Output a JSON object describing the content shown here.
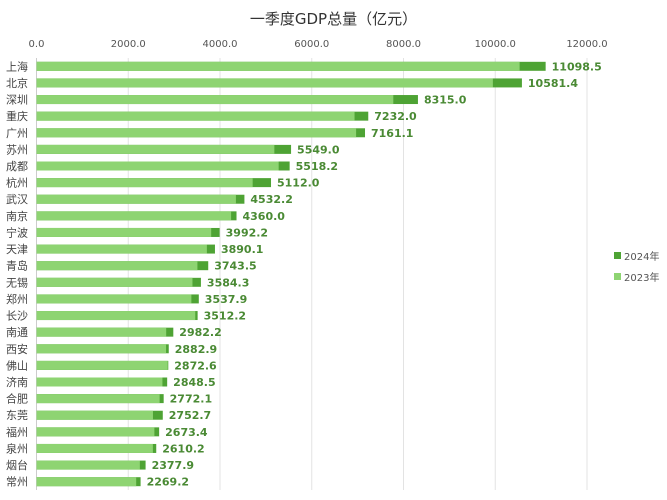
{
  "chart_data": {
    "type": "bar",
    "orientation": "horizontal",
    "title": "一季度GDP总量（亿元）",
    "xlim": [
      0,
      12000
    ],
    "x_ticks": [
      "0.0",
      "2000.0",
      "4000.0",
      "6000.0",
      "8000.0",
      "10000.0",
      "12000.0"
    ],
    "grid": true,
    "legend_position": "right",
    "categories": [
      "上海",
      "北京",
      "深圳",
      "重庆",
      "广州",
      "苏州",
      "成都",
      "杭州",
      "武汉",
      "南京",
      "宁波",
      "天津",
      "青岛",
      "无锡",
      "郑州",
      "长沙",
      "南通",
      "西安",
      "佛山",
      "济南",
      "合肥",
      "东莞",
      "福州",
      "泉州",
      "烟台",
      "常州"
    ],
    "series": [
      {
        "name": "2024年",
        "color": "#4ea334",
        "values": [
          11098.5,
          10581.4,
          8315.0,
          7232.0,
          7161.1,
          5549.0,
          5518.2,
          5112.0,
          4532.2,
          4360.0,
          3992.2,
          3890.1,
          3743.5,
          3584.3,
          3537.9,
          3512.2,
          2982.2,
          2882.9,
          2872.6,
          2848.5,
          2772.1,
          2752.7,
          2673.4,
          2610.2,
          2377.9,
          2269.2
        ],
        "labels": [
          "11098.5",
          "10581.4",
          "8315.0",
          "7232.0",
          "7161.1",
          "5549.0",
          "5518.2",
          "5112.0",
          "4532.2",
          "4360.0",
          "3992.2",
          "3890.1",
          "3743.5",
          "3584.3",
          "3537.9",
          "3512.2",
          "2982.2",
          "2882.9",
          "2872.6",
          "2848.5",
          "2772.1",
          "2752.7",
          "2673.4",
          "2610.2",
          "2377.9",
          "2269.2"
        ]
      },
      {
        "name": "2023年",
        "color": "#8ed472",
        "values": [
          10531,
          9948,
          7778,
          6933,
          6967,
          5185,
          5279,
          4712,
          4347,
          4242,
          3808,
          3714,
          3508,
          3400,
          3376,
          3461,
          2827,
          2824,
          2860,
          2745,
          2684,
          2539,
          2570,
          2537,
          2253,
          2173
        ]
      }
    ]
  }
}
